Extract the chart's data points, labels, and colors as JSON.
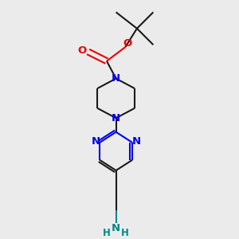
{
  "bg_color": "#ebebeb",
  "bond_color": "#1a1a1a",
  "N_color": "#0000ee",
  "O_color": "#ee0000",
  "NH_color": "#008888",
  "line_width": 1.5,
  "font_size": 9.5,
  "fig_w": 3.0,
  "fig_h": 3.0,
  "dpi": 100,
  "xlim": [
    0.25,
    0.85
  ],
  "ylim": [
    0.02,
    1.02
  ]
}
